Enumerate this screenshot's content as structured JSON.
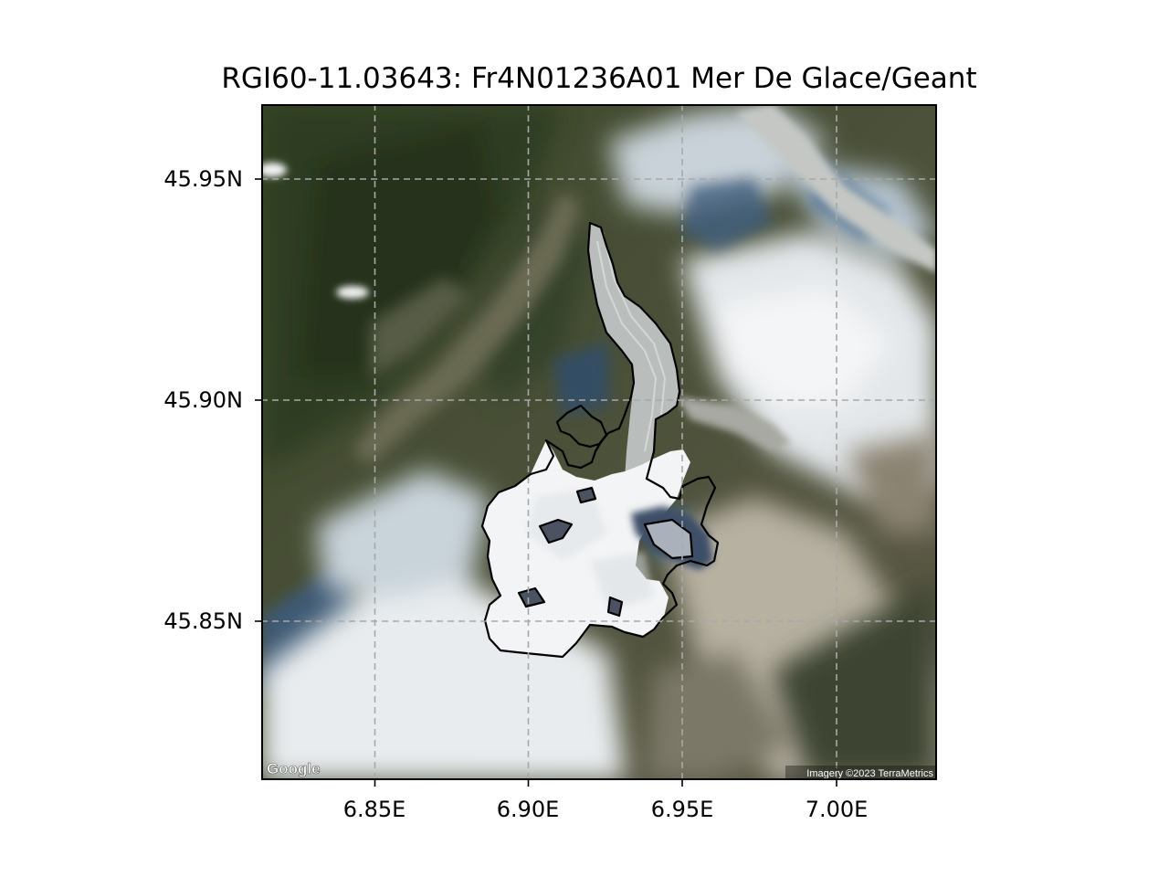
{
  "title": "RGI60-11.03643: Fr4N01236A01 Mer De Glace/Geant",
  "x_ticks": [
    "6.85E",
    "6.90E",
    "6.95E",
    "7.00E"
  ],
  "y_ticks": [
    "45.95N",
    "45.90N",
    "45.85N"
  ],
  "attribution": {
    "logo": "Google",
    "imagery": "Imagery ©2023 TerraMetrics"
  },
  "grid": {
    "on": true,
    "style": "dashed",
    "color": "#9a9a9a"
  },
  "colors": {
    "outline": "#000000",
    "forest": "#3a4a2a",
    "snow": "#f2f3f4",
    "rock": "#7a7364",
    "glacier_ice": "#c7c9c6",
    "shadow_blue": "#2e4f72"
  }
}
